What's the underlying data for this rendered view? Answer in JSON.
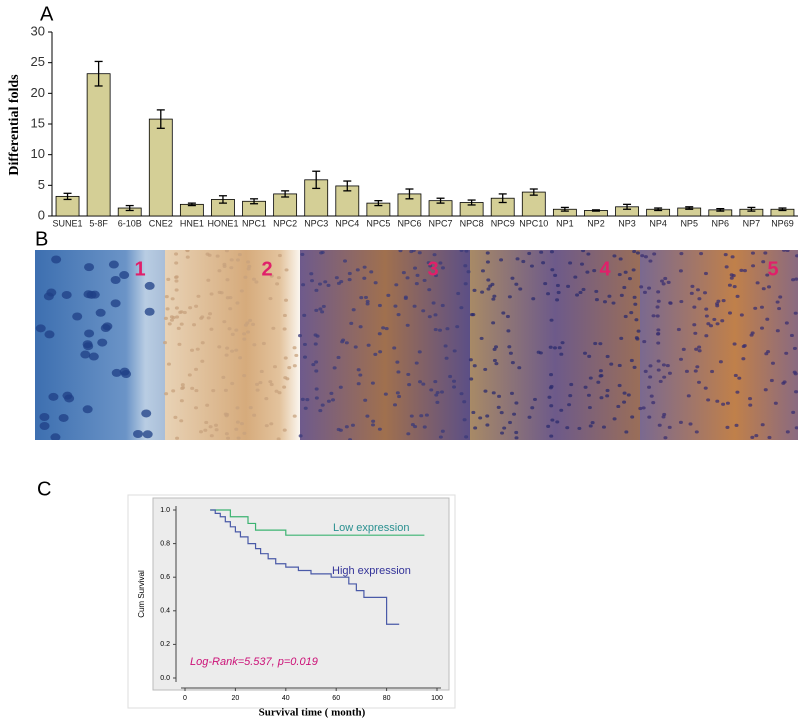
{
  "chart_data": [
    {
      "type": "bar",
      "panel_label": "A",
      "y_label": "Differential folds",
      "categories": [
        "SUNE1",
        "5-8F",
        "6-10B",
        "CNE2",
        "HNE1",
        "HONE1",
        "NPC1",
        "NPC2",
        "NPC3",
        "NPC4",
        "NPC5",
        "NPC6",
        "NPC7",
        "NPC8",
        "NPC9",
        "NPC10",
        "NP1",
        "NP2",
        "NP3",
        "NP4",
        "NP5",
        "NP6",
        "NP7",
        "NP69"
      ],
      "values": [
        3.2,
        23.2,
        1.3,
        15.8,
        1.9,
        2.7,
        2.4,
        3.6,
        5.9,
        4.9,
        2.1,
        3.6,
        2.5,
        2.2,
        2.9,
        3.9,
        1.1,
        0.9,
        1.5,
        1.1,
        1.3,
        1.0,
        1.1,
        1.1
      ],
      "errors": [
        0.5,
        2.0,
        0.4,
        1.5,
        0.2,
        0.6,
        0.4,
        0.5,
        1.4,
        0.8,
        0.4,
        0.8,
        0.4,
        0.4,
        0.7,
        0.5,
        0.3,
        0.1,
        0.4,
        0.2,
        0.2,
        0.2,
        0.3,
        0.2
      ],
      "color": "#d4cf96",
      "ylim": [
        0,
        30
      ],
      "yticks": [
        0,
        5,
        10,
        15,
        20,
        25,
        30
      ]
    },
    {
      "type": "step",
      "panel_label": "C",
      "x_label": "Survival time ( month)",
      "y_label": "Cum Survival",
      "annotation": "Log-Rank=5.537, p=0.019",
      "series": [
        {
          "name": "Low expression",
          "color": "#3cb371",
          "label_color": "#2a9090",
          "x": [
            10,
            18,
            18,
            25,
            25,
            28,
            28,
            40,
            40,
            95
          ],
          "values": [
            1,
            1,
            0.96,
            0.96,
            0.92,
            0.92,
            0.88,
            0.88,
            0.85,
            0.85
          ]
        },
        {
          "name": "High expression",
          "color": "#4a5aa8",
          "label_color": "#333399",
          "x": [
            10,
            12,
            12,
            14,
            14,
            16,
            16,
            18,
            18,
            20,
            20,
            22,
            22,
            25,
            25,
            28,
            28,
            30,
            30,
            33,
            33,
            36,
            36,
            40,
            40,
            45,
            45,
            50,
            50,
            58,
            58,
            65,
            65,
            68,
            68,
            71,
            71,
            80,
            80,
            85
          ],
          "values": [
            1,
            1,
            0.98,
            0.98,
            0.96,
            0.96,
            0.93,
            0.93,
            0.9,
            0.9,
            0.87,
            0.87,
            0.84,
            0.84,
            0.8,
            0.8,
            0.77,
            0.77,
            0.74,
            0.74,
            0.71,
            0.71,
            0.68,
            0.68,
            0.66,
            0.66,
            0.64,
            0.64,
            0.62,
            0.62,
            0.6,
            0.6,
            0.56,
            0.56,
            0.52,
            0.52,
            0.48,
            0.48,
            0.32,
            0.32
          ]
        }
      ],
      "xlim": [
        0,
        100
      ],
      "xticks": [
        0,
        20,
        40,
        60,
        80,
        100
      ],
      "ylim": [
        0,
        1
      ],
      "yticks": [
        {
          "value": 0,
          "label": "0.0"
        },
        0.2,
        0.4,
        0.6,
        0.8,
        {
          "value": 1,
          "label": "1.0"
        }
      ]
    }
  ],
  "image_panel": {
    "panel_label": "B",
    "numbers": [
      "1",
      "2",
      "3",
      "4",
      "5"
    ]
  }
}
